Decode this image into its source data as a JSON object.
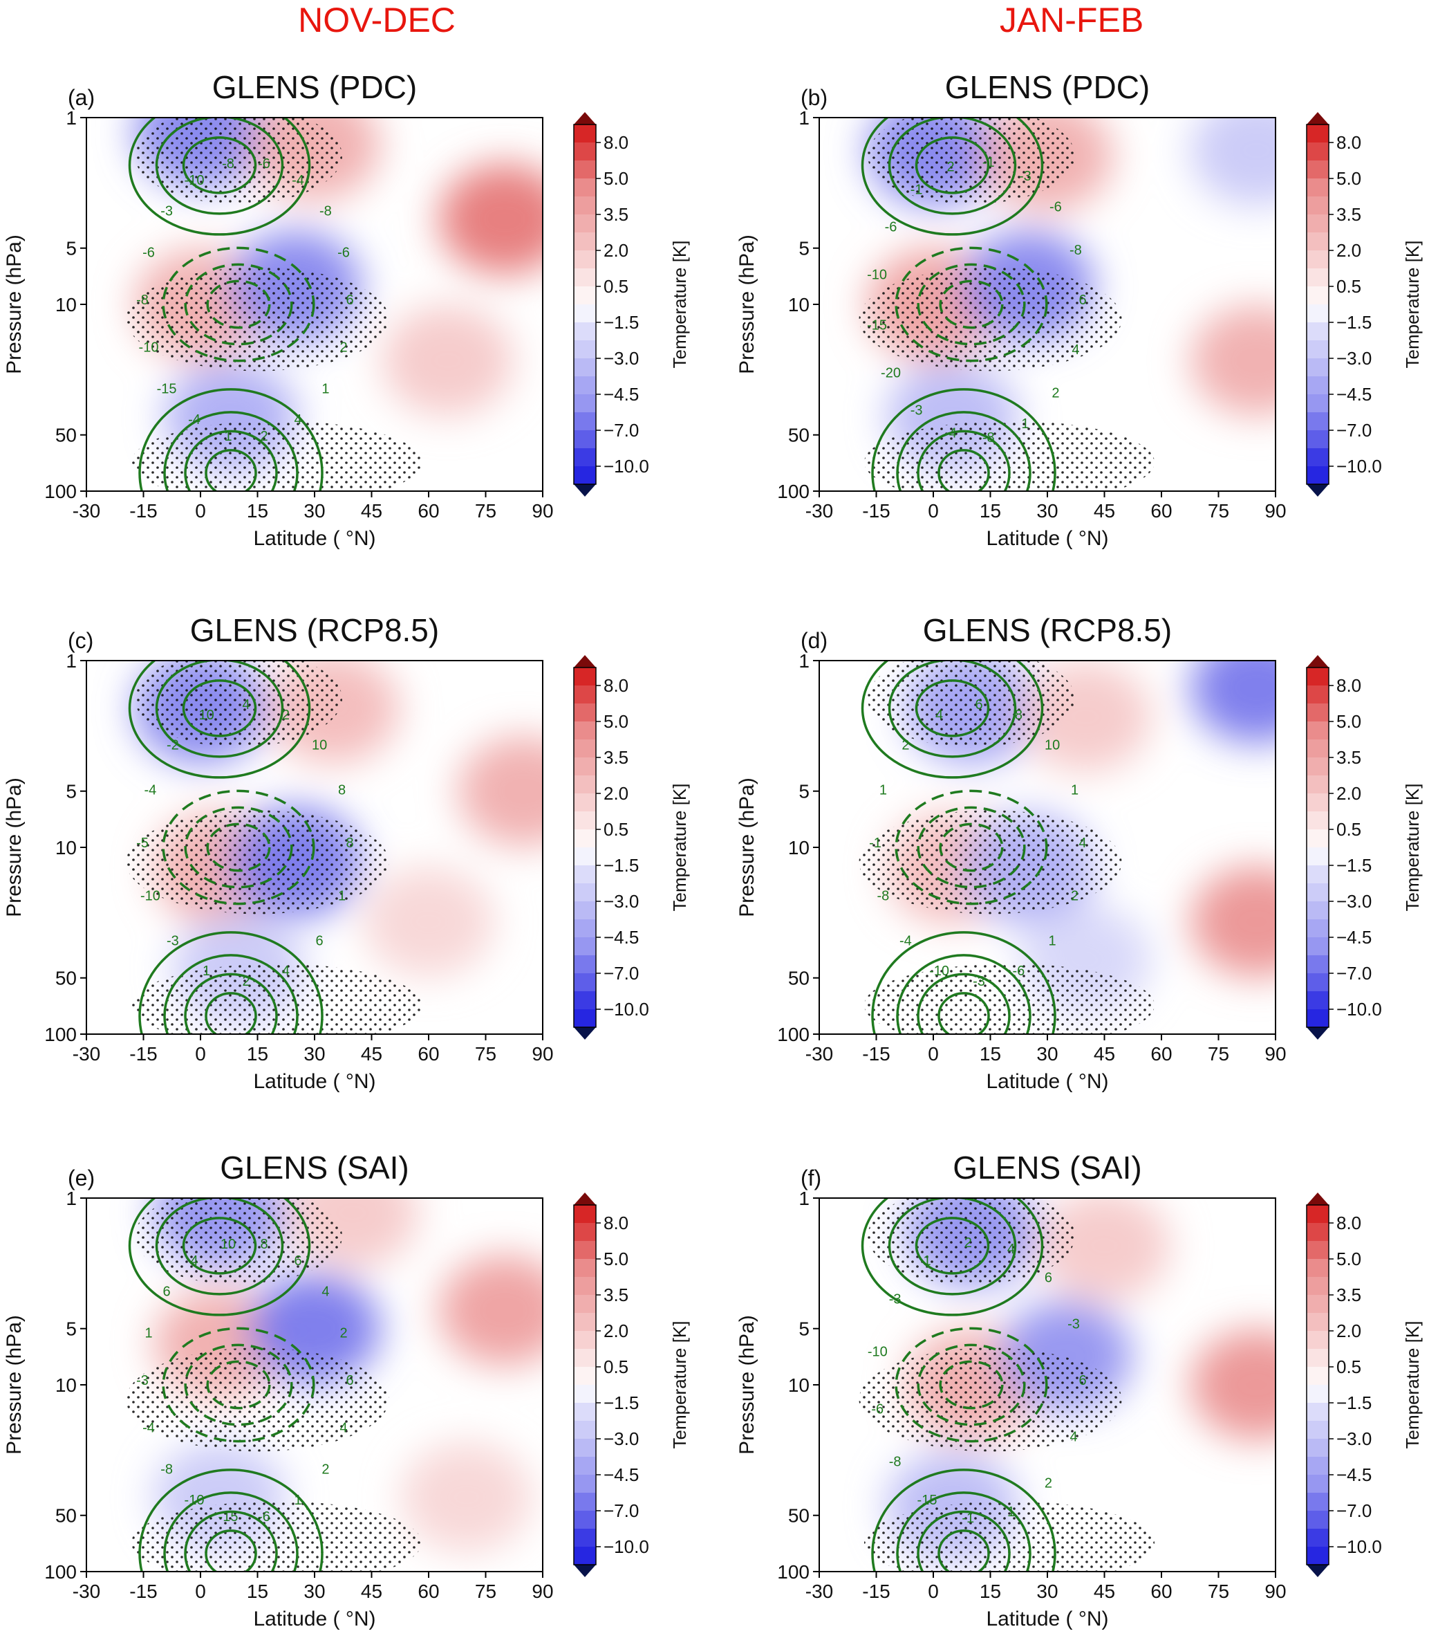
{
  "column_titles": [
    "NOV-DEC",
    "JAN-FEB"
  ],
  "colorbar": {
    "label": "Temperature [K]",
    "ticks": [
      "8.0",
      "5.0",
      "3.5",
      "2.0",
      "0.5",
      "−1.5",
      "−3.0",
      "−4.5",
      "−7.0",
      "−10.0"
    ]
  },
  "chart_data": [
    {
      "type": "heatmap",
      "panel": "(a)",
      "title": "GLENS (PDC)",
      "season": "NOV-DEC",
      "xlabel": "Latitude ( °N)",
      "ylabel": "Pressure (hPa)",
      "xticks": [
        "-30",
        "-15",
        "0",
        "15",
        "30",
        "45",
        "60",
        "75",
        "90"
      ],
      "xlim": [
        -30,
        90
      ],
      "yticks": [
        "1",
        "5",
        "10",
        "50",
        "100"
      ],
      "ylim": [
        100,
        1
      ],
      "yscale": "log",
      "contour_labels": [
        "6",
        "2",
        "1",
        "4",
        "2",
        "1",
        "-4",
        "-15",
        "-10",
        "-8",
        "-6",
        "-3",
        "-10",
        "-8",
        "-6",
        "-4",
        "-8",
        "-6"
      ],
      "anomalies": [
        {
          "lat": 0,
          "p": 1.2,
          "value": -4.5
        },
        {
          "lat": 30,
          "p": 1.4,
          "value": 3.0
        },
        {
          "lat": 80,
          "p": 3.5,
          "value": 5.0
        },
        {
          "lat": 65,
          "p": 20,
          "value": 2.0
        },
        {
          "lat": 0,
          "p": 10,
          "value": 3.0
        },
        {
          "lat": 25,
          "p": 8,
          "value": -4.5
        },
        {
          "lat": 8,
          "p": 40,
          "value": -3.0
        }
      ]
    },
    {
      "type": "heatmap",
      "panel": "(b)",
      "title": "GLENS (PDC)",
      "season": "JAN-FEB",
      "xlabel": "Latitude ( °N)",
      "ylabel": "Pressure (hPa)",
      "xticks": [
        "-30",
        "-15",
        "0",
        "15",
        "30",
        "45",
        "60",
        "75",
        "90"
      ],
      "xlim": [
        -30,
        90
      ],
      "yticks": [
        "1",
        "5",
        "10",
        "50",
        "100"
      ],
      "ylim": [
        100,
        1
      ],
      "yscale": "log",
      "contour_labels": [
        "6",
        "4",
        "2",
        "1",
        "-8",
        "-4",
        "-3",
        "-20",
        "-15",
        "-10",
        "-6",
        "-1",
        "2",
        "-1",
        "-3",
        "-6",
        "-8"
      ],
      "anomalies": [
        {
          "lat": 0,
          "p": 1.5,
          "value": -4.5
        },
        {
          "lat": 30,
          "p": 1.6,
          "value": 3.0
        },
        {
          "lat": 85,
          "p": 1.5,
          "value": -2.0
        },
        {
          "lat": 0,
          "p": 10,
          "value": 3.5
        },
        {
          "lat": 25,
          "p": 8,
          "value": -4.5
        },
        {
          "lat": 85,
          "p": 20,
          "value": 3.0
        },
        {
          "lat": 5,
          "p": 40,
          "value": -2.5
        }
      ]
    },
    {
      "type": "heatmap",
      "panel": "(c)",
      "title": "GLENS (RCP8.5)",
      "season": "NOV-DEC",
      "xlabel": "Latitude ( °N)",
      "ylabel": "Pressure (hPa)",
      "xticks": [
        "-30",
        "-15",
        "0",
        "15",
        "30",
        "45",
        "60",
        "75",
        "90"
      ],
      "xlim": [
        -30,
        90
      ],
      "yticks": [
        "1",
        "5",
        "10",
        "50",
        "100"
      ],
      "ylim": [
        100,
        1
      ],
      "yscale": "log",
      "contour_labels": [
        "8",
        "1",
        "6",
        "4",
        "2",
        "1",
        "-3",
        "-10",
        "-5",
        "-4",
        "-2",
        "10",
        "4",
        "2",
        "10",
        "8"
      ],
      "anomalies": [
        {
          "lat": 0,
          "p": 1.8,
          "value": -4.5
        },
        {
          "lat": 35,
          "p": 1.8,
          "value": 2.5
        },
        {
          "lat": 85,
          "p": 5,
          "value": 3.0
        },
        {
          "lat": 5,
          "p": 13,
          "value": 3.0
        },
        {
          "lat": 25,
          "p": 12,
          "value": -5.0
        },
        {
          "lat": 10,
          "p": 45,
          "value": -2.0
        },
        {
          "lat": 60,
          "p": 25,
          "value": 1.5
        }
      ]
    },
    {
      "type": "heatmap",
      "panel": "(d)",
      "title": "GLENS (RCP8.5)",
      "season": "JAN-FEB",
      "xlabel": "Latitude ( °N)",
      "ylabel": "Pressure (hPa)",
      "xticks": [
        "-30",
        "-15",
        "0",
        "15",
        "30",
        "45",
        "60",
        "75",
        "90"
      ],
      "xlim": [
        -30,
        90
      ],
      "yticks": [
        "1",
        "5",
        "10",
        "50",
        "100"
      ],
      "ylim": [
        100,
        1
      ],
      "yscale": "log",
      "contour_labels": [
        "4",
        "2",
        "1",
        "-6",
        "-3",
        "-10",
        "-4",
        "-8",
        "-1",
        "1",
        "2",
        "4",
        "6",
        "8",
        "10",
        "1"
      ],
      "anomalies": [
        {
          "lat": 10,
          "p": 1.8,
          "value": -3.5
        },
        {
          "lat": 40,
          "p": 2.0,
          "value": 2.0
        },
        {
          "lat": 85,
          "p": 1.4,
          "value": -5.0
        },
        {
          "lat": 5,
          "p": 13,
          "value": 2.5
        },
        {
          "lat": 25,
          "p": 13,
          "value": -3.0
        },
        {
          "lat": 85,
          "p": 25,
          "value": 4.0
        },
        {
          "lat": 40,
          "p": 40,
          "value": -1.5
        }
      ]
    },
    {
      "type": "heatmap",
      "panel": "(e)",
      "title": "GLENS (SAI)",
      "season": "NOV-DEC",
      "xlabel": "Latitude ( °N)",
      "ylabel": "Pressure (hPa)",
      "xticks": [
        "-30",
        "-15",
        "0",
        "15",
        "30",
        "45",
        "60",
        "75",
        "90"
      ],
      "xlim": [
        -30,
        90
      ],
      "yticks": [
        "1",
        "5",
        "10",
        "50",
        "100"
      ],
      "ylim": [
        100,
        1
      ],
      "yscale": "log",
      "contour_labels": [
        "6",
        "4",
        "2",
        "1",
        "-6",
        "-15",
        "-10",
        "-8",
        "-4",
        "-3",
        "1",
        "6",
        "4",
        "10",
        "8",
        "6",
        "4",
        "2"
      ],
      "anomalies": [
        {
          "lat": 5,
          "p": 1.2,
          "value": -4.0
        },
        {
          "lat": 40,
          "p": 1.2,
          "value": 2.0
        },
        {
          "lat": 80,
          "p": 4,
          "value": 3.5
        },
        {
          "lat": 5,
          "p": 6,
          "value": 3.0
        },
        {
          "lat": 30,
          "p": 5,
          "value": -5.0
        },
        {
          "lat": 70,
          "p": 40,
          "value": 1.5
        },
        {
          "lat": 5,
          "p": 40,
          "value": -2.0
        }
      ]
    },
    {
      "type": "heatmap",
      "panel": "(f)",
      "title": "GLENS (SAI)",
      "season": "JAN-FEB",
      "xlabel": "Latitude ( °N)",
      "ylabel": "Pressure (hPa)",
      "xticks": [
        "-30",
        "-15",
        "0",
        "15",
        "30",
        "45",
        "60",
        "75",
        "90"
      ],
      "xlim": [
        -30,
        90
      ],
      "yticks": [
        "1",
        "5",
        "10",
        "50",
        "100"
      ],
      "ylim": [
        100,
        1
      ],
      "yscale": "log",
      "contour_labels": [
        "6",
        "4",
        "2",
        "1",
        "-1",
        "-15",
        "-8",
        "-6",
        "-10",
        "-3",
        "1",
        "2",
        "4",
        "6",
        "-3"
      ],
      "anomalies": [
        {
          "lat": 10,
          "p": 1.5,
          "value": -4.0
        },
        {
          "lat": 45,
          "p": 1.8,
          "value": 2.0
        },
        {
          "lat": 85,
          "p": 10,
          "value": 4.0
        },
        {
          "lat": 10,
          "p": 10,
          "value": 3.0
        },
        {
          "lat": 35,
          "p": 7,
          "value": -4.0
        },
        {
          "lat": 5,
          "p": 45,
          "value": -2.5
        }
      ]
    }
  ]
}
